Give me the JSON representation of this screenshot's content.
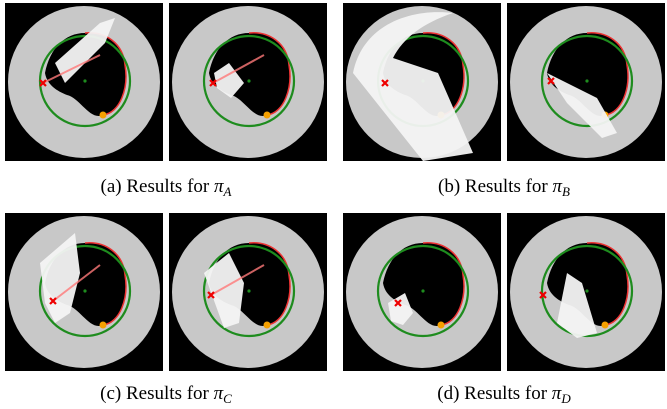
{
  "figure": {
    "subfigures": [
      {
        "label": "(a) Results for",
        "symbol": "π",
        "subscript": "A"
      },
      {
        "label": "(b) Results for",
        "symbol": "π",
        "subscript": "B"
      },
      {
        "label": "(c) Results for",
        "symbol": "π",
        "subscript": "C"
      },
      {
        "label": "(d) Results for",
        "symbol": "π",
        "subscript": "D"
      }
    ]
  }
}
